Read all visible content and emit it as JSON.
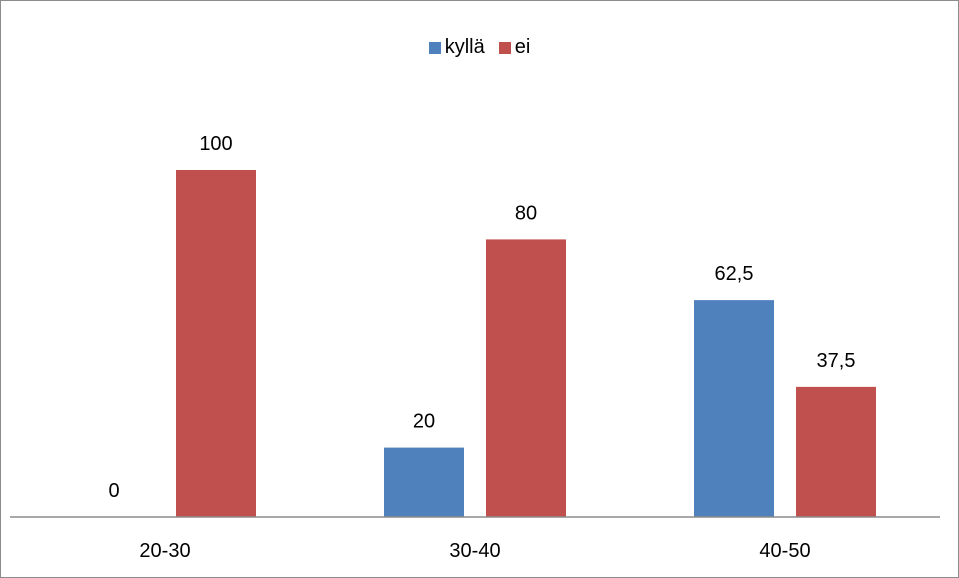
{
  "chart_data": {
    "type": "bar",
    "title": "",
    "xlabel": "",
    "ylabel": "",
    "categories": [
      "20-30",
      "30-40",
      "40-50"
    ],
    "series": [
      {
        "name": "kyllä",
        "color": "#4f81bd",
        "values": [
          0,
          20,
          62.5
        ],
        "labels": [
          "0",
          "20",
          "62,5"
        ]
      },
      {
        "name": "ei",
        "color": "#c0504d",
        "values": [
          100,
          80,
          37.5
        ],
        "labels": [
          "100",
          "80",
          "37,5"
        ]
      }
    ],
    "ylim": [
      0,
      100
    ],
    "grid": false,
    "legend_position": "top"
  }
}
